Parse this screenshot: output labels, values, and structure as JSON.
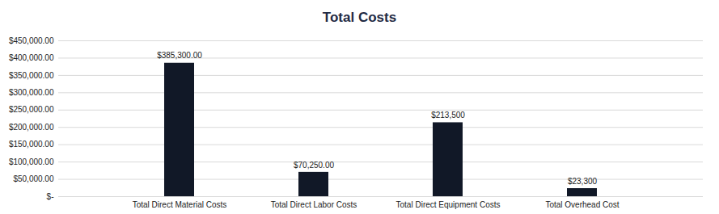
{
  "chart_data": {
    "type": "bar",
    "title": "Total Costs",
    "categories": [
      "Total Direct Material Costs",
      "Total Direct Labor Costs",
      "Total Direct Equipment Costs",
      "Total Overhead Cost"
    ],
    "values": [
      385300,
      70250,
      213500,
      23300
    ],
    "value_labels": [
      "$385,300.00",
      "$70,250.00",
      "$213,500",
      "$23,300"
    ],
    "color": "#111827",
    "ylim": [
      0,
      450000
    ],
    "yticks": [
      {
        "value": 0,
        "label": "$-"
      },
      {
        "value": 50000,
        "label": "$50,000.00"
      },
      {
        "value": 100000,
        "label": "$100,000.00"
      },
      {
        "value": 150000,
        "label": "$150,000.00"
      },
      {
        "value": 200000,
        "label": "$200,000.00"
      },
      {
        "value": 250000,
        "label": "$250,000.00"
      },
      {
        "value": 300000,
        "label": "$300,000.00"
      },
      {
        "value": 350000,
        "label": "$350,000.00"
      },
      {
        "value": 400000,
        "label": "$400,000.00"
      },
      {
        "value": 450000,
        "label": "$450,000.00"
      }
    ],
    "grid": true,
    "data_labels": true
  }
}
